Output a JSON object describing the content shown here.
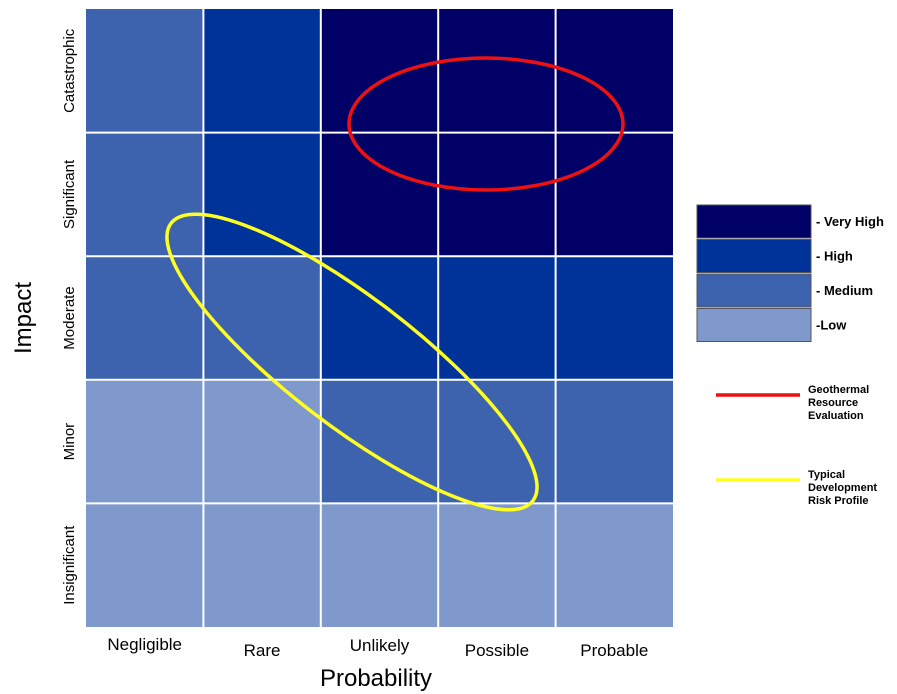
{
  "chart_data": {
    "type": "heatmap",
    "xlabel": "Probability",
    "ylabel": "Impact",
    "x_categories": [
      "Negligible",
      "Rare",
      "Unlikely",
      "Possible",
      "Probable"
    ],
    "y_categories": [
      "Catastrophic",
      "Significant",
      "Moderate",
      "Minor",
      "Insignificant"
    ],
    "cells": [
      [
        "Medium",
        "High",
        "Very High",
        "Very High",
        "Very High"
      ],
      [
        "Medium",
        "High",
        "Very High",
        "Very High",
        "Very High"
      ],
      [
        "Medium",
        "Medium",
        "High",
        "High",
        "High"
      ],
      [
        "Low",
        "Low",
        "Medium",
        "Medium",
        "Medium"
      ],
      [
        "Low",
        "Low",
        "Low",
        "Low",
        "Low"
      ]
    ],
    "levels": [
      {
        "name": "Very High",
        "label": "- Very High",
        "color": "#000066"
      },
      {
        "name": "High",
        "label": "- High",
        "color": "#003399"
      },
      {
        "name": "Medium",
        "label": "- Medium",
        "color": "#3D63AF"
      },
      {
        "name": "Low",
        "label": "-Low",
        "color": "#7F99CC"
      }
    ],
    "annotations": [
      {
        "name": "geothermal-resource-evaluation",
        "label_lines": [
          "Geothermal",
          "Resource",
          "Evaluation"
        ],
        "color": "#EE1111",
        "shape": "ellipse",
        "center": {
          "x": "Possible",
          "y": "Catastrophic/Significant boundary"
        }
      },
      {
        "name": "typical-development-risk-profile",
        "label_lines": [
          "Typical",
          "Development",
          "Risk Profile"
        ],
        "color": "#FFFF22",
        "shape": "ellipse",
        "center": {
          "x": "Unlikely",
          "y": "Moderate"
        }
      }
    ]
  }
}
